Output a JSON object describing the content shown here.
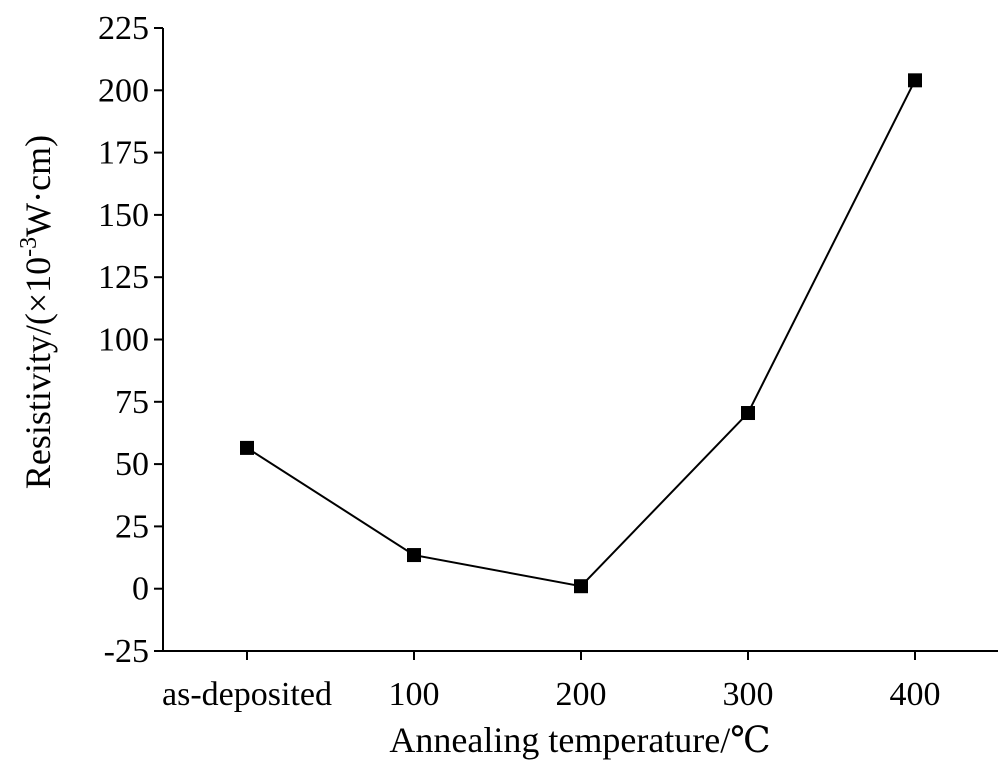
{
  "chart_data": {
    "type": "line",
    "categories": [
      "as-deposited",
      "100",
      "200",
      "300",
      "400"
    ],
    "series": [
      {
        "values": [
          56.5,
          13.5,
          1,
          70.5,
          204
        ]
      }
    ],
    "xlabel": "Annealing temperature/℃",
    "ylabel": {
      "prefix": "Resistivity/(×10",
      "superscript": "-3",
      "suffix": "W·cm)"
    },
    "ylim": [
      -25,
      225
    ],
    "yticks": [
      -25,
      0,
      25,
      50,
      75,
      100,
      125,
      150,
      175,
      200,
      225
    ],
    "ytick_labels": [
      "-25",
      "0",
      "25",
      "50",
      "75",
      "100",
      "125",
      "150",
      "175",
      "200",
      "225"
    ],
    "grid": false,
    "legend": "none",
    "marker": "square",
    "line_color": "#000000"
  }
}
